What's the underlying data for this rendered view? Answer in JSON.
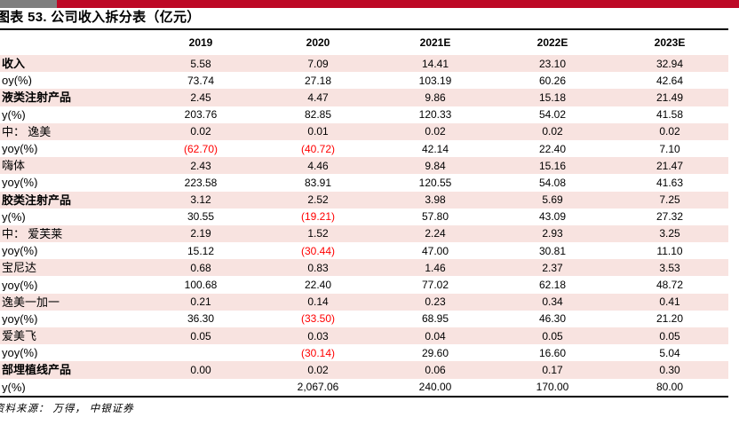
{
  "title": "图表 53. 公司收入拆分表（亿元）",
  "source": "资料来源： 万得， 中银证券",
  "colors": {
    "accent_bar_red": "#BD0926",
    "accent_bar_gray": "#7F7F7F",
    "row_stripe_pink": "#F8E3E0",
    "negative_value_red": "#FF0000"
  },
  "table": {
    "columns": [
      "2019",
      "2020",
      "2021E",
      "2022E",
      "2023E"
    ],
    "rows": [
      {
        "label": "收入",
        "bold": true,
        "indent": 0,
        "values": [
          "5.58",
          "7.09",
          "14.41",
          "23.10",
          "32.94"
        ]
      },
      {
        "label": "oy(%)",
        "bold": false,
        "indent": 0,
        "values": [
          "73.74",
          "27.18",
          "103.19",
          "60.26",
          "42.64"
        ]
      },
      {
        "label": "液类注射产品",
        "bold": true,
        "indent": 0,
        "values": [
          "2.45",
          "4.47",
          "9.86",
          "15.18",
          "21.49"
        ]
      },
      {
        "label": "y(%)",
        "bold": false,
        "indent": 0,
        "values": [
          "203.76",
          "82.85",
          "120.33",
          "54.02",
          "41.58"
        ]
      },
      {
        "label": "中： 逸美",
        "bold": false,
        "indent": 0,
        "values": [
          "0.02",
          "0.01",
          "0.02",
          "0.02",
          "0.02"
        ]
      },
      {
        "label": "yoy(%)",
        "bold": false,
        "indent": 1,
        "values": [
          "(62.70)",
          "(40.72)",
          "42.14",
          "22.40",
          "7.10"
        ]
      },
      {
        "label": "嗨体",
        "bold": false,
        "indent": 1,
        "values": [
          "2.43",
          "4.46",
          "9.84",
          "15.16",
          "21.47"
        ]
      },
      {
        "label": "yoy(%)",
        "bold": false,
        "indent": 1,
        "values": [
          "223.58",
          "83.91",
          "120.55",
          "54.08",
          "41.63"
        ]
      },
      {
        "label": "胶类注射产品",
        "bold": true,
        "indent": 0,
        "values": [
          "3.12",
          "2.52",
          "3.98",
          "5.69",
          "7.25"
        ]
      },
      {
        "label": "y(%)",
        "bold": false,
        "indent": 0,
        "values": [
          "30.55",
          "(19.21)",
          "57.80",
          "43.09",
          "27.32"
        ]
      },
      {
        "label": "中： 爱芙莱",
        "bold": false,
        "indent": 0,
        "values": [
          "2.19",
          "1.52",
          "2.24",
          "2.93",
          "3.25"
        ]
      },
      {
        "label": "yoy(%)",
        "bold": false,
        "indent": 1,
        "values": [
          "15.12",
          "(30.44)",
          "47.00",
          "30.81",
          "11.10"
        ]
      },
      {
        "label": "宝尼达",
        "bold": false,
        "indent": 1,
        "values": [
          "0.68",
          "0.83",
          "1.46",
          "2.37",
          "3.53"
        ]
      },
      {
        "label": "yoy(%)",
        "bold": false,
        "indent": 1,
        "values": [
          "100.68",
          "22.40",
          "77.02",
          "62.18",
          "48.72"
        ]
      },
      {
        "label": "逸美一加一",
        "bold": false,
        "indent": 1,
        "values": [
          "0.21",
          "0.14",
          "0.23",
          "0.34",
          "0.41"
        ]
      },
      {
        "label": "yoy(%)",
        "bold": false,
        "indent": 1,
        "values": [
          "36.30",
          "(33.50)",
          "68.95",
          "46.30",
          "21.20"
        ]
      },
      {
        "label": "爱美飞",
        "bold": false,
        "indent": 1,
        "values": [
          "0.05",
          "0.03",
          "0.04",
          "0.05",
          "0.05"
        ]
      },
      {
        "label": "yoy(%)",
        "bold": false,
        "indent": 1,
        "values": [
          "",
          "(30.14)",
          "29.60",
          "16.60",
          "5.04"
        ]
      },
      {
        "label": "部埋植线产品",
        "bold": true,
        "indent": 0,
        "values": [
          "0.00",
          "0.02",
          "0.06",
          "0.17",
          "0.30"
        ]
      },
      {
        "label": "y(%)",
        "bold": false,
        "indent": 0,
        "values": [
          "",
          "2,067.06",
          "240.00",
          "170.00",
          "80.00"
        ]
      }
    ]
  }
}
